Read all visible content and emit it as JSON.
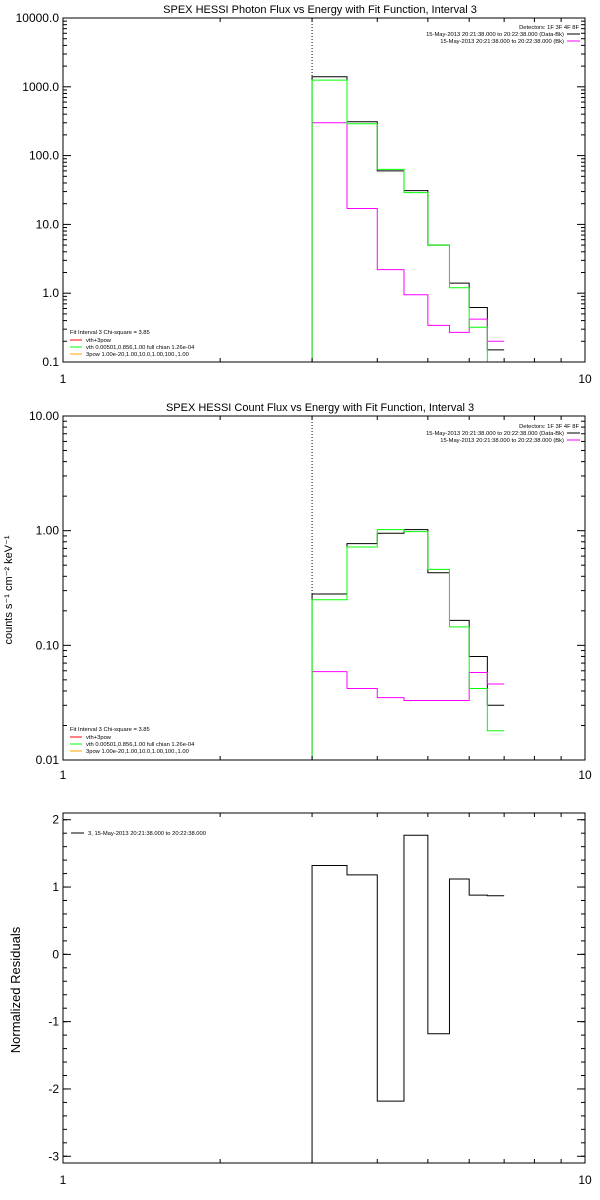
{
  "chart_data": [
    {
      "type": "line",
      "title": "SPEX HESSI Photon Flux vs Energy with Fit Function, Interval 3",
      "xscale": "log",
      "yscale": "log",
      "xlim": [
        1,
        10
      ],
      "ylim": [
        0.1,
        10000
      ],
      "xticks": [
        "1",
        "10"
      ],
      "yticks": [
        "0.1",
        "1.0",
        "10.0",
        "100.0",
        "1000.0",
        "10000.0"
      ],
      "vline_x": 3,
      "edges": [
        3,
        3.5,
        4,
        4.5,
        5,
        5.5,
        6,
        6.5,
        7
      ],
      "legend_right": {
        "header": "Detectors: 1F 3F 4F 8F",
        "items": [
          {
            "text": "15-May-2013 20:21:38.000 to 20:22:38.000 (Data-Bk)",
            "color": "#000000"
          },
          {
            "text": "15-May-2013 20:21:38.000 to 20:22:38.000 (Bk)",
            "color": "#ff00ff"
          }
        ]
      },
      "legend_left": {
        "header": "Fit Interval 3   Chi-square = 3.85",
        "items": [
          {
            "text": "vth+3pow",
            "color": "#ff0000"
          },
          {
            "text": "vth 0.00501,0.856,1.00   full chian 1.26e-04",
            "color": "#00ff00"
          },
          {
            "text": "3pow 1.00e-20,1.00,10.0,1.00,100.,1.00",
            "color": "#ffa500"
          }
        ]
      },
      "series": [
        {
          "color": "#000000",
          "values": [
            1400,
            310,
            60,
            31,
            5,
            1.4,
            0.62,
            0.15
          ]
        },
        {
          "color": "#ff00ff",
          "values": [
            300,
            17,
            2.2,
            0.95,
            0.34,
            0.27,
            0.42,
            0.2
          ]
        },
        {
          "color": "#00ff00",
          "values": [
            1250,
            290,
            63,
            29,
            5,
            1.2,
            0.32,
            0.1
          ]
        }
      ]
    },
    {
      "type": "line",
      "title": "SPEX HESSI Count Flux vs Energy with Fit Function, Interval 3",
      "ylabel": "counts s⁻¹ cm⁻² keV⁻¹",
      "xscale": "log",
      "yscale": "log",
      "xlim": [
        1,
        10
      ],
      "ylim": [
        0.01,
        10
      ],
      "xticks": [
        "1",
        "10"
      ],
      "yticks": [
        "0.01",
        "0.10",
        "1.00",
        "10.00"
      ],
      "vline_x": 3,
      "edges": [
        3,
        3.5,
        4,
        4.5,
        5,
        5.5,
        6,
        6.5,
        7
      ],
      "legend_right": {
        "header": "Detectors: 1F 3F 4F 8F",
        "items": [
          {
            "text": "15-May-2013 20:21:38.000 to 20:22:38.000 (Data-Bk)",
            "color": "#000000"
          },
          {
            "text": "15-May-2013 20:21:38.000 to 20:22:38.000 (Bk)",
            "color": "#ff00ff"
          }
        ]
      },
      "legend_left": {
        "header": "Fit Interval 3   Chi-square = 3.85",
        "items": [
          {
            "text": "vth+3pow",
            "color": "#ff0000"
          },
          {
            "text": "vth 0.00501,0.856,1.00   full chian 1.26e-04",
            "color": "#00ff00"
          },
          {
            "text": "3pow 1.00e-20,1.00,10.0,1.00,100.,1.00",
            "color": "#ffa500"
          }
        ]
      },
      "series": [
        {
          "color": "#000000",
          "values": [
            0.28,
            0.77,
            0.95,
            1.02,
            0.43,
            0.165,
            0.08,
            0.03
          ]
        },
        {
          "color": "#ff00ff",
          "values": [
            0.059,
            0.042,
            0.035,
            0.033,
            0.033,
            0.033,
            0.058,
            0.046
          ]
        },
        {
          "color": "#00ff00",
          "values": [
            0.25,
            0.72,
            1.02,
            0.98,
            0.46,
            0.145,
            0.042,
            0.018
          ]
        }
      ]
    },
    {
      "type": "line",
      "title": "",
      "ylabel": "Normalized Residuals",
      "xscale": "log",
      "xlim": [
        1,
        10
      ],
      "ylim": [
        -3.1,
        2.1
      ],
      "xticks": [
        "1",
        "10"
      ],
      "yticks": [
        "-3",
        "-2",
        "-1",
        "0",
        "1",
        "2"
      ],
      "edges": [
        3,
        3.5,
        4,
        4.5,
        5,
        5.5,
        6,
        6.5,
        7
      ],
      "legend": {
        "text": "3, 15-May-2013 20:21:38.000 to 20:22:38.000",
        "color": "#000000"
      },
      "series": [
        {
          "color": "#000000",
          "values": [
            1.32,
            1.18,
            -2.18,
            1.77,
            -1.18,
            1.12,
            0.88,
            0.87
          ]
        }
      ]
    }
  ]
}
